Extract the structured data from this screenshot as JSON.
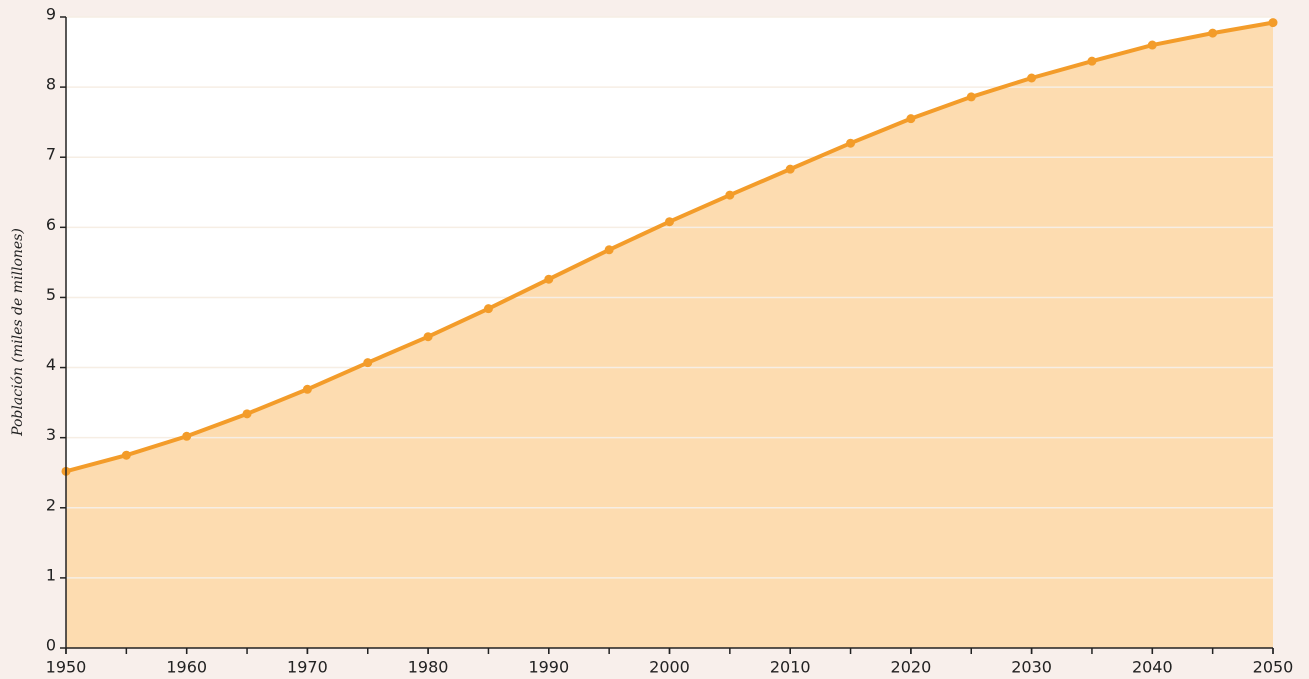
{
  "chart_data": {
    "type": "line",
    "y_label": "Población (miles de millones)",
    "x": [
      1950,
      1955,
      1960,
      1965,
      1970,
      1975,
      1980,
      1985,
      1990,
      1995,
      2000,
      2005,
      2010,
      2015,
      2020,
      2025,
      2030,
      2035,
      2040,
      2045,
      2050
    ],
    "series": [
      {
        "color": "#f39c2a",
        "fill": "#fddcb0",
        "values": [
          2.52,
          2.75,
          3.02,
          3.34,
          3.69,
          4.07,
          4.44,
          4.84,
          5.26,
          5.68,
          6.08,
          6.46,
          6.83,
          7.2,
          7.55,
          7.86,
          8.13,
          8.37,
          8.6,
          8.77,
          8.92
        ]
      }
    ],
    "xlim": [
      1950,
      2050
    ],
    "xticks": [
      1950,
      1960,
      1970,
      1980,
      1990,
      2000,
      2010,
      2020,
      2030,
      2040,
      2050
    ],
    "ylim": [
      0,
      9
    ],
    "yticks": [
      0,
      1,
      2,
      3,
      4,
      5,
      6,
      7,
      8,
      9
    ],
    "area": true,
    "grid": true,
    "markers": true
  }
}
